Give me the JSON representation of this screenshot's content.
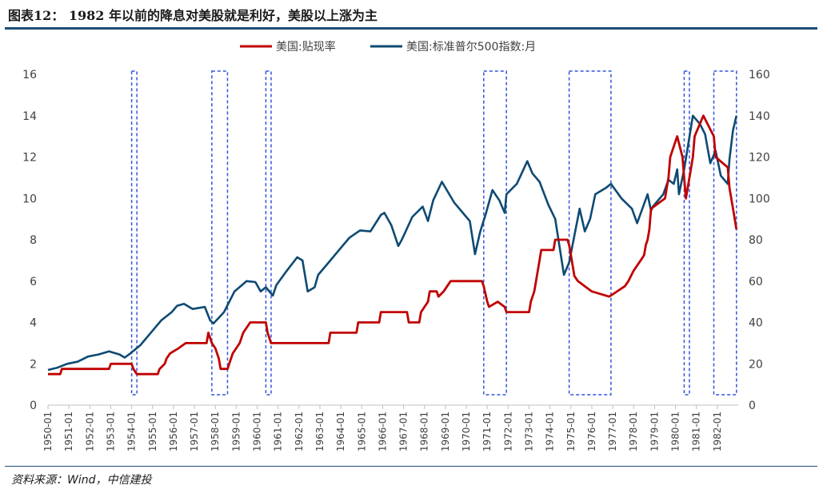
{
  "title": "图表12： 1982 年以前的降息对美股就是利好，美股以上涨为主",
  "source": "资料来源：Wind，中信建投",
  "colors": {
    "discount_rate": "#c00000",
    "sp500": "#0e4a73",
    "box": "#3355dd",
    "rule": "#1f4e79"
  },
  "chart_data": {
    "type": "line",
    "title": "",
    "xlabel": "",
    "ylabel": "",
    "y2label": "",
    "x_range": [
      "1950-01",
      "1982-12"
    ],
    "ylim": [
      0,
      16
    ],
    "y2lim": [
      0,
      160
    ],
    "yticks": [
      "0",
      "2",
      "4",
      "6",
      "8",
      "10",
      "12",
      "14",
      "16"
    ],
    "y2ticks": [
      "0",
      "20",
      "40",
      "60",
      "80",
      "100",
      "120",
      "140",
      "160"
    ],
    "xticks": [
      "1950-01",
      "1951-01",
      "1952-01",
      "1953-01",
      "1954-01",
      "1955-01",
      "1956-01",
      "1957-01",
      "1958-01",
      "1959-01",
      "1960-01",
      "1961-01",
      "1962-01",
      "1963-01",
      "1964-01",
      "1965-01",
      "1966-01",
      "1967-01",
      "1968-01",
      "1969-01",
      "1970-01",
      "1971-01",
      "1972-01",
      "1973-01",
      "1974-01",
      "1975-01",
      "1976-01",
      "1977-01",
      "1978-01",
      "1979-01",
      "1980-01",
      "1981-01",
      "1982-01"
    ],
    "legend_position": "top-center",
    "series": [
      {
        "name": "美国:贴现率",
        "axis": "left",
        "points": [
          [
            "1950-01",
            1.5
          ],
          [
            "1950-08",
            1.5
          ],
          [
            "1950-09",
            1.75
          ],
          [
            "1952-12",
            1.75
          ],
          [
            "1953-01",
            2.0
          ],
          [
            "1954-01",
            2.0
          ],
          [
            "1954-02",
            1.75
          ],
          [
            "1954-04",
            1.5
          ],
          [
            "1955-04",
            1.5
          ],
          [
            "1955-05",
            1.75
          ],
          [
            "1955-08",
            2.0
          ],
          [
            "1955-09",
            2.25
          ],
          [
            "1955-11",
            2.5
          ],
          [
            "1956-04",
            2.75
          ],
          [
            "1956-08",
            3.0
          ],
          [
            "1957-08",
            3.0
          ],
          [
            "1957-09",
            3.5
          ],
          [
            "1957-11",
            3.0
          ],
          [
            "1958-01",
            2.75
          ],
          [
            "1958-03",
            2.25
          ],
          [
            "1958-04",
            1.75
          ],
          [
            "1958-08",
            1.75
          ],
          [
            "1958-09",
            2.0
          ],
          [
            "1958-11",
            2.5
          ],
          [
            "1959-03",
            3.0
          ],
          [
            "1959-05",
            3.5
          ],
          [
            "1959-09",
            4.0
          ],
          [
            "1960-06",
            4.0
          ],
          [
            "1960-07",
            3.5
          ],
          [
            "1960-09",
            3.0
          ],
          [
            "1963-06",
            3.0
          ],
          [
            "1963-07",
            3.5
          ],
          [
            "1964-10",
            3.5
          ],
          [
            "1964-11",
            4.0
          ],
          [
            "1965-11",
            4.0
          ],
          [
            "1965-12",
            4.5
          ],
          [
            "1967-03",
            4.5
          ],
          [
            "1967-04",
            4.0
          ],
          [
            "1967-10",
            4.0
          ],
          [
            "1967-11",
            4.5
          ],
          [
            "1968-03",
            5.0
          ],
          [
            "1968-04",
            5.5
          ],
          [
            "1968-08",
            5.5
          ],
          [
            "1968-09",
            5.25
          ],
          [
            "1968-12",
            5.5
          ],
          [
            "1969-04",
            6.0
          ],
          [
            "1970-10",
            6.0
          ],
          [
            "1970-11",
            5.75
          ],
          [
            "1971-01",
            5.0
          ],
          [
            "1971-02",
            4.75
          ],
          [
            "1971-07",
            5.0
          ],
          [
            "1971-11",
            4.75
          ],
          [
            "1971-12",
            4.5
          ],
          [
            "1973-01",
            4.5
          ],
          [
            "1973-02",
            5.0
          ],
          [
            "1973-04",
            5.5
          ],
          [
            "1973-05",
            6.0
          ],
          [
            "1973-06",
            6.5
          ],
          [
            "1973-07",
            7.0
          ],
          [
            "1973-08",
            7.5
          ],
          [
            "1974-03",
            7.5
          ],
          [
            "1974-04",
            8.0
          ],
          [
            "1974-11",
            8.0
          ],
          [
            "1974-12",
            7.75
          ],
          [
            "1975-01",
            7.25
          ],
          [
            "1975-02",
            6.75
          ],
          [
            "1975-03",
            6.25
          ],
          [
            "1975-05",
            6.0
          ],
          [
            "1976-01",
            5.5
          ],
          [
            "1976-11",
            5.25
          ],
          [
            "1977-08",
            5.75
          ],
          [
            "1977-10",
            6.0
          ],
          [
            "1978-01",
            6.5
          ],
          [
            "1978-05",
            7.0
          ],
          [
            "1978-07",
            7.25
          ],
          [
            "1978-08",
            7.75
          ],
          [
            "1978-09",
            8.0
          ],
          [
            "1978-10",
            8.5
          ],
          [
            "1978-11",
            9.5
          ],
          [
            "1979-07",
            10.0
          ],
          [
            "1979-08",
            10.5
          ],
          [
            "1979-09",
            11.0
          ],
          [
            "1979-10",
            12.0
          ],
          [
            "1980-02",
            13.0
          ],
          [
            "1980-05",
            12.0
          ],
          [
            "1980-06",
            11.0
          ],
          [
            "1980-07",
            10.0
          ],
          [
            "1980-09",
            11.0
          ],
          [
            "1980-11",
            12.0
          ],
          [
            "1980-12",
            13.0
          ],
          [
            "1981-05",
            14.0
          ],
          [
            "1981-11",
            13.0
          ],
          [
            "1981-12",
            12.0
          ],
          [
            "1982-07",
            11.5
          ],
          [
            "1982-08",
            10.5
          ],
          [
            "1982-10",
            9.5
          ],
          [
            "1982-12",
            8.5
          ]
        ]
      },
      {
        "name": "美国:标准普尔500指数:月",
        "axis": "right",
        "points": [
          [
            "1950-01",
            17
          ],
          [
            "1950-06",
            18
          ],
          [
            "1950-12",
            20
          ],
          [
            "1951-06",
            21
          ],
          [
            "1951-12",
            23.5
          ],
          [
            "1952-06",
            24.5
          ],
          [
            "1952-12",
            26
          ],
          [
            "1953-06",
            24.5
          ],
          [
            "1953-09",
            23
          ],
          [
            "1953-12",
            24.8
          ],
          [
            "1954-06",
            29
          ],
          [
            "1954-12",
            35
          ],
          [
            "1955-06",
            41
          ],
          [
            "1955-12",
            45
          ],
          [
            "1956-03",
            48
          ],
          [
            "1956-07",
            49
          ],
          [
            "1956-12",
            46.5
          ],
          [
            "1957-07",
            47.5
          ],
          [
            "1957-10",
            41
          ],
          [
            "1957-12",
            39.5
          ],
          [
            "1958-06",
            45
          ],
          [
            "1958-12",
            55
          ],
          [
            "1959-07",
            60
          ],
          [
            "1959-12",
            59.5
          ],
          [
            "1960-03",
            55
          ],
          [
            "1960-06",
            57
          ],
          [
            "1960-10",
            53
          ],
          [
            "1960-12",
            58
          ],
          [
            "1961-06",
            65
          ],
          [
            "1961-12",
            71.5
          ],
          [
            "1962-03",
            70
          ],
          [
            "1962-06",
            55
          ],
          [
            "1962-10",
            57
          ],
          [
            "1962-12",
            63
          ],
          [
            "1963-06",
            69
          ],
          [
            "1963-12",
            75
          ],
          [
            "1964-06",
            81
          ],
          [
            "1964-12",
            84.5
          ],
          [
            "1965-06",
            84
          ],
          [
            "1965-12",
            92
          ],
          [
            "1966-02",
            93
          ],
          [
            "1966-06",
            87
          ],
          [
            "1966-10",
            77
          ],
          [
            "1966-12",
            80
          ],
          [
            "1967-06",
            91
          ],
          [
            "1967-12",
            96
          ],
          [
            "1968-03",
            89
          ],
          [
            "1968-06",
            99
          ],
          [
            "1968-11",
            108
          ],
          [
            "1969-06",
            98
          ],
          [
            "1969-12",
            92
          ],
          [
            "1970-03",
            89
          ],
          [
            "1970-06",
            73
          ],
          [
            "1970-09",
            84
          ],
          [
            "1970-12",
            92
          ],
          [
            "1971-04",
            104
          ],
          [
            "1971-08",
            99
          ],
          [
            "1971-11",
            93
          ],
          [
            "1971-12",
            102
          ],
          [
            "1972-06",
            107
          ],
          [
            "1972-12",
            118
          ],
          [
            "1973-03",
            112
          ],
          [
            "1973-07",
            108
          ],
          [
            "1973-12",
            97
          ],
          [
            "1974-04",
            90
          ],
          [
            "1974-09",
            63
          ],
          [
            "1974-12",
            69
          ],
          [
            "1975-06",
            95
          ],
          [
            "1975-09",
            84
          ],
          [
            "1975-12",
            90
          ],
          [
            "1976-03",
            102
          ],
          [
            "1976-09",
            105
          ],
          [
            "1976-12",
            107
          ],
          [
            "1977-06",
            100
          ],
          [
            "1977-12",
            95
          ],
          [
            "1978-03",
            88
          ],
          [
            "1978-09",
            102
          ],
          [
            "1978-11",
            94
          ],
          [
            "1978-12",
            96
          ],
          [
            "1979-06",
            102
          ],
          [
            "1979-09",
            109
          ],
          [
            "1979-12",
            107
          ],
          [
            "1980-02",
            114
          ],
          [
            "1980-03",
            102
          ],
          [
            "1980-06",
            114
          ],
          [
            "1980-11",
            140
          ],
          [
            "1981-03",
            136
          ],
          [
            "1981-06",
            131
          ],
          [
            "1981-09",
            117
          ],
          [
            "1981-12",
            123
          ],
          [
            "1982-03",
            111
          ],
          [
            "1982-07",
            107
          ],
          [
            "1982-08",
            119
          ],
          [
            "1982-10",
            133
          ],
          [
            "1982-12",
            140
          ]
        ]
      }
    ],
    "highlight_periods": [
      [
        "1954-01",
        "1954-04"
      ],
      [
        "1957-11",
        "1958-08"
      ],
      [
        "1960-06",
        "1960-09"
      ],
      [
        "1970-11",
        "1971-12"
      ],
      [
        "1974-12",
        "1976-12"
      ],
      [
        "1980-06",
        "1980-09"
      ],
      [
        "1981-11",
        "1982-12"
      ]
    ]
  }
}
